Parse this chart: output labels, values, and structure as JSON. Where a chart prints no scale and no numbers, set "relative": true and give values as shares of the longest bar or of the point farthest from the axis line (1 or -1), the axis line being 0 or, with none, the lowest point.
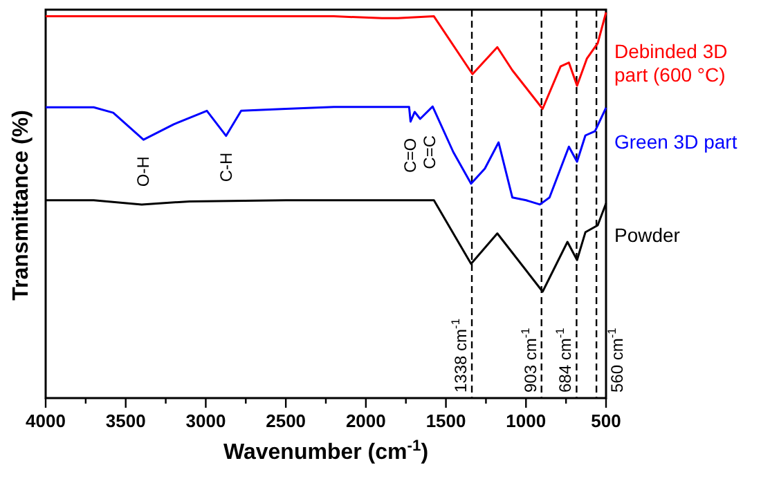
{
  "chart_data": {
    "type": "line",
    "relative": true,
    "xlabel": "Wavenumber (cm$^{-1}$)",
    "ylabel": "Transmittance (%)",
    "xlim": [
      4000,
      500
    ],
    "xticks": [
      4000,
      {
        "value": 3750,
        "label": null
      },
      3500,
      {
        "value": 3250,
        "label": null
      },
      3000,
      {
        "value": 2750,
        "label": null
      },
      2500,
      {
        "value": 2250,
        "label": null
      },
      2000,
      {
        "value": 1750,
        "label": null
      },
      1500,
      {
        "value": 1250,
        "label": null
      },
      1000,
      {
        "value": 750,
        "label": null
      },
      500
    ],
    "tick_labels": "x",
    "line_style": "solid",
    "marker": "none",
    "series": [
      {
        "name": "Debinded 3D part (600 °C)",
        "color": "#ff0000",
        "x": [
          4000,
          3500,
          3000,
          2500,
          2200,
          1900,
          1800,
          1575,
          1334,
          1179,
          1085,
          896,
          784,
          732,
          681,
          620,
          552,
          500
        ],
        "values": [
          0.99,
          0.99,
          0.99,
          0.99,
          0.99,
          0.985,
          0.985,
          0.99,
          0.84,
          0.91,
          0.85,
          0.75,
          0.86,
          0.87,
          0.81,
          0.88,
          0.92,
          1.0
        ]
      },
      {
        "name": "Green 3D part",
        "color": "#0000ff",
        "x": [
          4000,
          3700,
          3578,
          3389,
          3200,
          2993,
          2873,
          2779,
          2500,
          2200,
          1900,
          1730,
          1721,
          1695,
          1661,
          1583,
          1454,
          1343,
          1257,
          1171,
          1085,
          999,
          913,
          853,
          732,
          681,
          629,
          569,
          500
        ],
        "values": [
          0.754,
          0.754,
          0.74,
          0.67,
          0.71,
          0.745,
          0.68,
          0.745,
          0.75,
          0.755,
          0.755,
          0.755,
          0.717,
          0.742,
          0.724,
          0.756,
          0.638,
          0.556,
          0.595,
          0.663,
          0.52,
          0.513,
          0.502,
          0.52,
          0.652,
          0.613,
          0.681,
          0.692,
          0.753
        ]
      },
      {
        "name": "Powder",
        "color": "#000000",
        "x": [
          4000,
          3700,
          3400,
          3100,
          2500,
          2000,
          1575,
          1343,
          1179,
          896,
          741,
          681,
          629,
          552,
          500
        ],
        "values": [
          0.513,
          0.513,
          0.502,
          0.51,
          0.513,
          0.513,
          0.513,
          0.348,
          0.427,
          0.276,
          0.405,
          0.358,
          0.43,
          0.448,
          0.505
        ]
      }
    ],
    "ref_lines": [
      {
        "axis": "x",
        "value": 1338,
        "label": "1338 cm$^{-1}$",
        "color": "#000000",
        "line_style": "dashed"
      },
      {
        "axis": "x",
        "value": 903,
        "label": "903 cm$^{-1}$",
        "color": "#000000",
        "line_style": "dashed"
      },
      {
        "axis": "x",
        "value": 684,
        "label": "684 cm$^{-1}$",
        "color": "#000000",
        "line_style": "dashed"
      },
      {
        "axis": "x",
        "value": 560,
        "label": "560 cm$^{-1}$",
        "color": "#000000",
        "line_style": "dashed"
      }
    ],
    "annotations": [
      "O-H",
      "C-H",
      "C=O",
      "C=C"
    ]
  }
}
